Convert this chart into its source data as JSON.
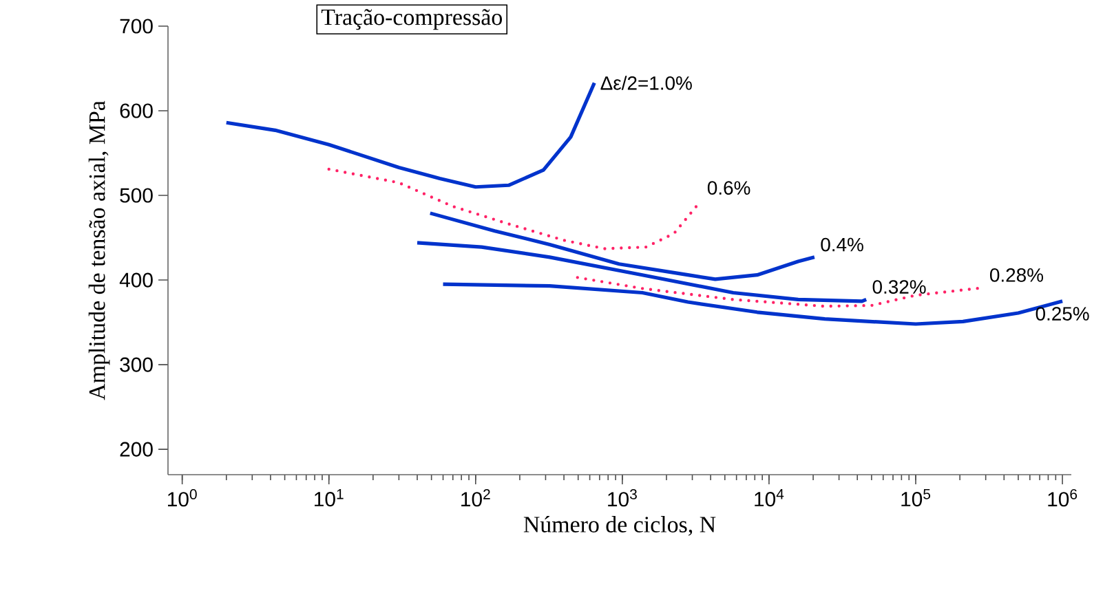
{
  "chart_data": {
    "type": "line",
    "title": "Tração-compressão",
    "xlabel": "Número de ciclos, N",
    "ylabel": "Amplitude de tensão axial, MPa",
    "log": "x",
    "grid": false,
    "marker": "none",
    "xlim": [
      0.8,
      1150000
    ],
    "ylim": [
      170,
      700
    ],
    "xticks": [
      {
        "value": 1,
        "label": "10$^{0}$"
      },
      {
        "value": 10,
        "label": "10$^{1}$"
      },
      {
        "value": 100,
        "label": "10$^{2}$"
      },
      {
        "value": 1000,
        "label": "10$^{3}$"
      },
      {
        "value": 10000,
        "label": "10$^{4}$"
      },
      {
        "value": 100000,
        "label": "10$^{5}$"
      },
      {
        "value": 1000000,
        "label": "10$^{6}$"
      }
    ],
    "yticks": [
      200,
      300,
      400,
      500,
      600,
      700
    ],
    "series": [
      {
        "name": "Δε/2=1.0%",
        "color": "#0033cc",
        "line_style": "solid",
        "x": [
          2,
          4.3,
          10,
          30,
          57,
          100,
          168,
          290,
          445,
          645
        ],
        "values": [
          586,
          577,
          560,
          533,
          520,
          510,
          512,
          530,
          569,
          633
        ]
      },
      {
        "name": "0.6%",
        "color": "#ff2266",
        "line_style": "dotted",
        "x": [
          10,
          30,
          70,
          170,
          400,
          760,
          1450,
          2250,
          3450
        ],
        "values": [
          531,
          515,
          487,
          466,
          447,
          437,
          439,
          455,
          494
        ]
      },
      {
        "name": "0.4%",
        "color": "#0033cc",
        "line_style": "solid",
        "x": [
          49,
          135,
          320,
          950,
          2800,
          4300,
          8300,
          15800,
          20400
        ],
        "values": [
          479,
          458,
          442,
          419,
          406,
          401,
          406,
          422,
          427
        ]
      },
      {
        "name": "0.32%",
        "color": "#0033cc",
        "line_style": "solid",
        "x": [
          40,
          110,
          320,
          1370,
          5700,
          15800,
          43000,
          46000
        ],
        "values": [
          444,
          439,
          427,
          406,
          385,
          377,
          375,
          377
        ]
      },
      {
        "name": "0.28%",
        "color": "#ff2266",
        "line_style": "dotted",
        "x": [
          495,
          1370,
          5700,
          24000,
          50000,
          100000,
          290000
        ],
        "values": [
          403,
          390,
          377,
          369,
          370,
          382,
          391
        ]
      },
      {
        "name": "0.25%",
        "color": "#0033cc",
        "line_style": "solid",
        "x": [
          60,
          320,
          1370,
          2800,
          8300,
          24000,
          100000,
          210000,
          500000,
          1000000
        ],
        "values": [
          395,
          393,
          385,
          374,
          362,
          354,
          348,
          351,
          361,
          375
        ]
      }
    ]
  }
}
